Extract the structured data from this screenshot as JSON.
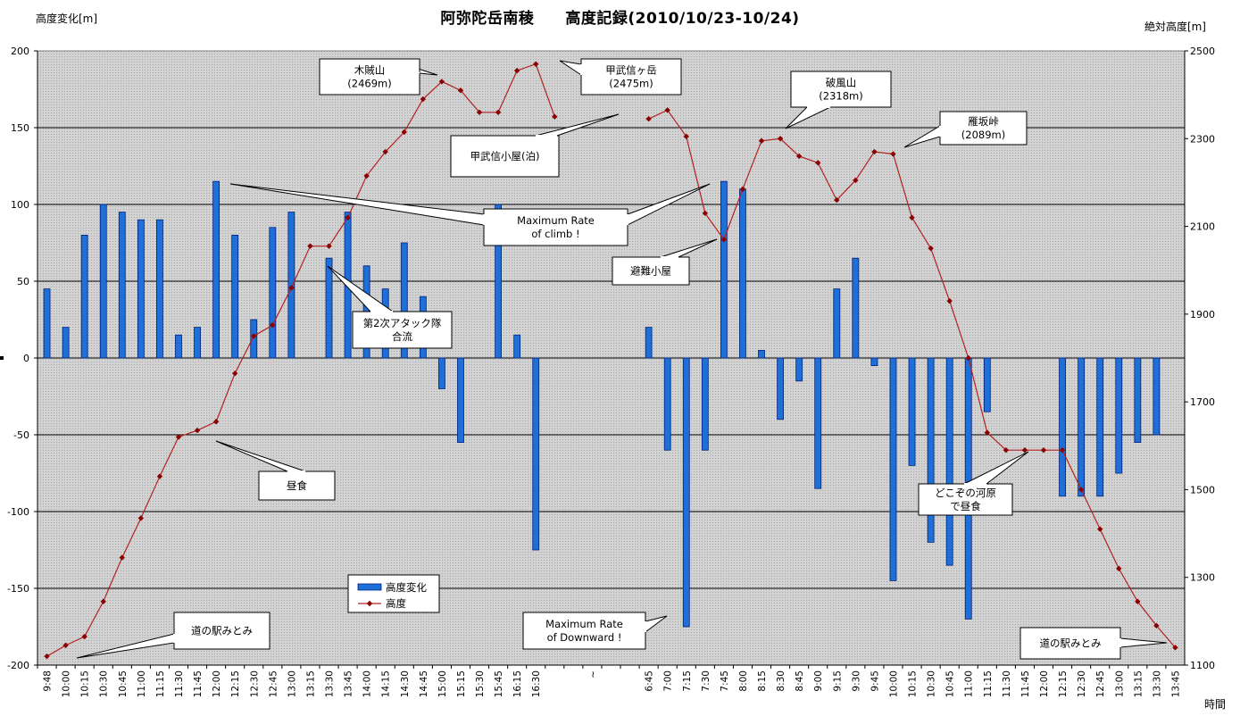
{
  "chart_data": {
    "type": "bar+line",
    "title": "阿弥陀岳南稜　　高度記録(2010/10/23-10/24)",
    "ylabel_left": "高度変化[m]",
    "ylabel_right": "絶対高度[m]",
    "xlabel": "時間",
    "ylim_left": [
      -200,
      200
    ],
    "ylim_right": [
      1100,
      2500
    ],
    "yticks_left": [
      200,
      150,
      100,
      50,
      0,
      -50,
      -100,
      -150,
      -200
    ],
    "yticks_right": [
      2500,
      2300,
      2100,
      1900,
      1700,
      1500,
      1300,
      1100
    ],
    "grid": "horizontal",
    "legend_position": "bottom-center",
    "categories": [
      "9:48",
      "10:00",
      "10:15",
      "10:30",
      "10:45",
      "11:00",
      "11:15",
      "11:30",
      "11:45",
      "12:00",
      "12:15",
      "12:30",
      "12:45",
      "13:00",
      "13:15",
      "13:30",
      "13:45",
      "14:00",
      "14:15",
      "14:30",
      "14:45",
      "15:00",
      "15:15",
      "15:30",
      "15:45",
      "16:15",
      "16:30",
      "",
      "",
      "~",
      "",
      "",
      "6:45",
      "7:00",
      "7:15",
      "7:30",
      "7:45",
      "8:00",
      "8:15",
      "8:30",
      "8:45",
      "9:00",
      "9:15",
      "9:30",
      "9:45",
      "10:00",
      "10:15",
      "10:30",
      "10:45",
      "11:00",
      "11:15",
      "11:30",
      "11:45",
      "12:00",
      "12:15",
      "12:30",
      "12:45",
      "13:00",
      "13:15",
      "13:30",
      "13:45"
    ],
    "series": [
      {
        "name": "高度変化",
        "type": "bar",
        "axis": "left",
        "color": "#1f6fd8",
        "values": [
          45,
          20,
          80,
          100,
          95,
          90,
          90,
          15,
          20,
          115,
          80,
          25,
          85,
          95,
          null,
          65,
          95,
          60,
          45,
          75,
          40,
          -20,
          -55,
          null,
          100,
          15,
          -125,
          null,
          null,
          null,
          null,
          null,
          20,
          -60,
          -175,
          -60,
          115,
          110,
          5,
          -40,
          -15,
          -85,
          45,
          65,
          -5,
          -145,
          -70,
          -120,
          -135,
          -170,
          -35,
          null,
          null,
          null,
          -90,
          -90,
          -90,
          -75,
          -55,
          -50,
          null
        ]
      },
      {
        "name": "高度",
        "type": "line",
        "axis": "right",
        "color": "#b22222",
        "values": [
          1120,
          1145,
          1165,
          1245,
          1345,
          1435,
          1530,
          1620,
          1635,
          1655,
          1765,
          1850,
          1875,
          1960,
          2055,
          2055,
          2120,
          2215,
          2270,
          2315,
          2390,
          2430,
          2410,
          2360,
          2360,
          2455,
          2470,
          2350,
          null,
          null,
          null,
          null,
          2345,
          2365,
          2305,
          2130,
          2070,
          2185,
          2295,
          2300,
          2260,
          2245,
          2160,
          2205,
          2270,
          2265,
          2120,
          2050,
          1930,
          1800,
          1630,
          1590,
          1590,
          1590,
          1590,
          1500,
          1410,
          1320,
          1245,
          1190,
          1140
        ]
      }
    ],
    "annotations": [
      {
        "text": [
          "木賊山",
          "(2469m)"
        ]
      },
      {
        "text": [
          "甲武信ヶ岳",
          "(2475m)"
        ]
      },
      {
        "text": [
          "甲武信小屋(泊)"
        ]
      },
      {
        "text": [
          "破風山",
          "(2318m)"
        ]
      },
      {
        "text": [
          "雁坂峠",
          "(2089m)"
        ]
      },
      {
        "text": [
          "Maximum Rate",
          "of climb !"
        ]
      },
      {
        "text": [
          "避難小屋"
        ]
      },
      {
        "text": [
          "第2次アタック隊",
          "合流"
        ]
      },
      {
        "text": [
          "昼食"
        ]
      },
      {
        "text": [
          "どこぞの河原",
          "で昼食"
        ]
      },
      {
        "text": [
          "道の駅みとみ"
        ]
      },
      {
        "text": [
          "Maximum Rate",
          "of Downward !"
        ]
      },
      {
        "text": [
          "道の駅みとみ"
        ]
      }
    ]
  }
}
